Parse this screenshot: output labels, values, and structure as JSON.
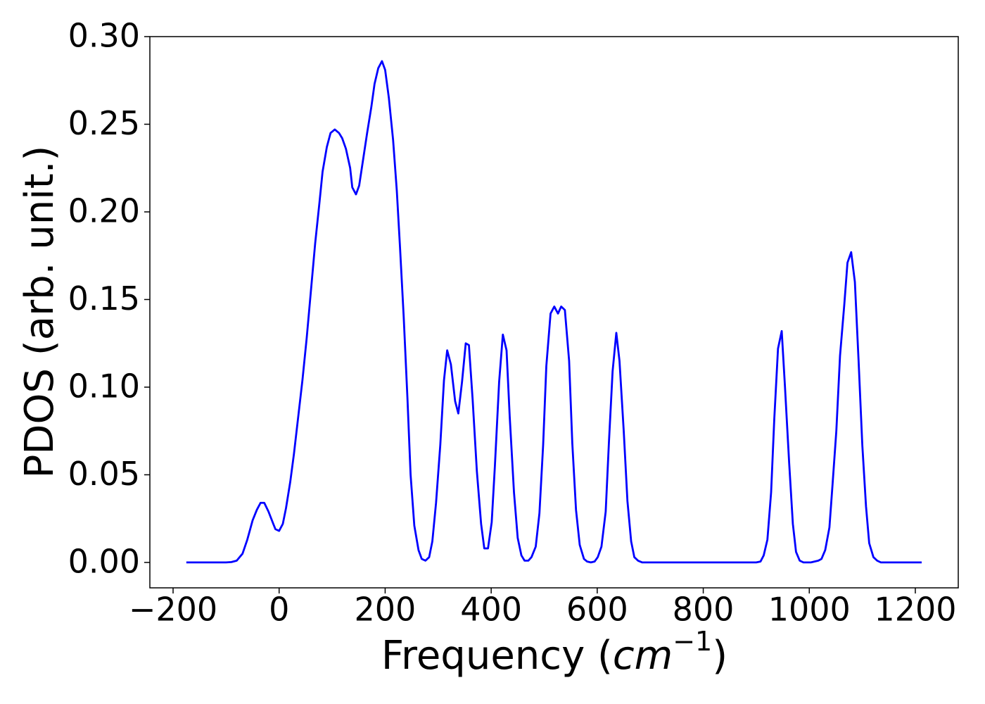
{
  "chart_data": {
    "type": "line",
    "xlabel": [
      "Frequency (",
      "cm",
      "−1",
      ")"
    ],
    "ylabel": "PDOS (arb. unit.)",
    "x": [
      -175,
      -100,
      -90,
      -80,
      -69,
      -60,
      -50,
      -42,
      -35,
      -28,
      -20,
      -11,
      -7,
      0,
      7,
      13,
      21,
      28,
      36,
      44,
      52,
      60,
      68,
      76,
      82,
      90,
      97,
      105,
      113,
      119,
      126,
      134,
      138,
      145,
      151,
      158,
      166,
      174,
      180,
      187,
      194,
      200,
      207,
      215,
      222,
      228,
      235,
      242,
      248,
      255,
      263,
      269,
      276,
      283,
      289,
      296,
      304,
      311,
      317,
      324,
      332,
      338,
      345,
      352,
      358,
      365,
      373,
      381,
      387,
      394,
      401,
      407,
      415,
      422,
      429,
      435,
      443,
      450,
      457,
      463,
      470,
      476,
      484,
      491,
      498,
      504,
      512,
      519,
      526,
      532,
      539,
      547,
      553,
      560,
      567,
      575,
      581,
      588,
      595,
      601,
      608,
      616,
      622,
      629,
      636,
      642,
      650,
      657,
      664,
      670,
      677,
      685,
      900,
      908,
      914,
      921,
      928,
      934,
      941,
      948,
      954,
      962,
      969,
      975,
      982,
      989,
      1003,
      1017,
      1023,
      1030,
      1038,
      1044,
      1051,
      1058,
      1066,
      1072,
      1079,
      1086,
      1093,
      1100,
      1107,
      1113,
      1121,
      1128,
      1135,
      1212
    ],
    "series": [
      {
        "name": "PDOS",
        "color": "#0000ff",
        "values": [
          0,
          0,
          0.0002,
          0.001,
          0.005,
          0.013,
          0.024,
          0.03,
          0.034,
          0.034,
          0.029,
          0.022,
          0.019,
          0.018,
          0.022,
          0.031,
          0.046,
          0.062,
          0.083,
          0.104,
          0.128,
          0.155,
          0.182,
          0.205,
          0.223,
          0.237,
          0.245,
          0.247,
          0.245,
          0.242,
          0.236,
          0.225,
          0.214,
          0.21,
          0.215,
          0.229,
          0.245,
          0.26,
          0.273,
          0.282,
          0.286,
          0.281,
          0.265,
          0.241,
          0.212,
          0.18,
          0.14,
          0.094,
          0.05,
          0.021,
          0.007,
          0.002,
          0.001,
          0.003,
          0.012,
          0.034,
          0.067,
          0.104,
          0.121,
          0.113,
          0.092,
          0.085,
          0.103,
          0.125,
          0.124,
          0.093,
          0.052,
          0.022,
          0.008,
          0.008,
          0.023,
          0.055,
          0.103,
          0.13,
          0.121,
          0.083,
          0.04,
          0.014,
          0.004,
          0.001,
          0.001,
          0.003,
          0.009,
          0.028,
          0.067,
          0.112,
          0.142,
          0.146,
          0.142,
          0.146,
          0.144,
          0.115,
          0.068,
          0.03,
          0.01,
          0.002,
          0.0005,
          0,
          0.0005,
          0.003,
          0.009,
          0.029,
          0.068,
          0.109,
          0.131,
          0.115,
          0.075,
          0.035,
          0.012,
          0.003,
          0.001,
          0,
          0,
          0.0005,
          0.004,
          0.013,
          0.04,
          0.082,
          0.122,
          0.132,
          0.101,
          0.057,
          0.022,
          0.006,
          0.001,
          0,
          0,
          0.001,
          0.002,
          0.007,
          0.02,
          0.045,
          0.075,
          0.118,
          0.147,
          0.171,
          0.177,
          0.16,
          0.115,
          0.067,
          0.032,
          0.011,
          0.003,
          0.001,
          0,
          0
        ]
      }
    ],
    "xlim": [
      -243.8,
      1281
    ],
    "ylim": [
      -0.0145,
      0.3
    ],
    "xticks": [
      {
        "value": -200,
        "label": "−200"
      },
      0,
      200,
      400,
      600,
      800,
      1000,
      1200
    ],
    "yticks": [
      {
        "value": 0,
        "label": "0.00"
      },
      {
        "value": 0.05,
        "label": "0.05"
      },
      {
        "value": 0.1,
        "label": "0.10"
      },
      {
        "value": 0.15,
        "label": "0.15"
      },
      {
        "value": 0.2,
        "label": "0.20"
      },
      {
        "value": 0.25,
        "label": "0.25"
      },
      {
        "value": 0.3,
        "label": "0.30"
      }
    ],
    "grid": false
  }
}
